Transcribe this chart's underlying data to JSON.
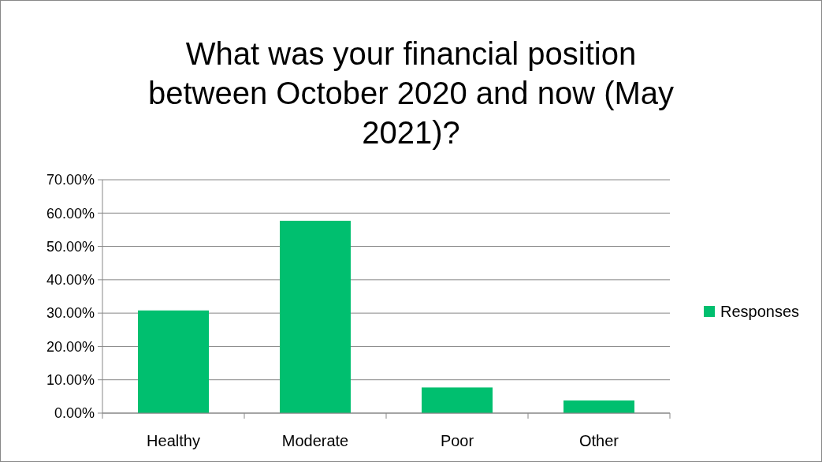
{
  "chart_data": {
    "type": "bar",
    "title": "What was your financial position between October 2020 and now (May 2021)?",
    "categories": [
      "Healthy",
      "Moderate",
      "Poor",
      "Other"
    ],
    "series": [
      {
        "name": "Responses",
        "color": "#00bf6f",
        "values": [
          30.8,
          57.7,
          7.7,
          3.8
        ]
      }
    ],
    "ylim": [
      0,
      70
    ],
    "yticks": [
      {
        "value": 0,
        "label": "0.00%"
      },
      {
        "value": 10,
        "label": "10.00%"
      },
      {
        "value": 20,
        "label": "20.00%"
      },
      {
        "value": 30,
        "label": "30.00%"
      },
      {
        "value": 40,
        "label": "40.00%"
      },
      {
        "value": 50,
        "label": "50.00%"
      },
      {
        "value": 60,
        "label": "60.00%"
      },
      {
        "value": 70,
        "label": "70.00%"
      }
    ],
    "grid": "y",
    "legend": "right"
  }
}
